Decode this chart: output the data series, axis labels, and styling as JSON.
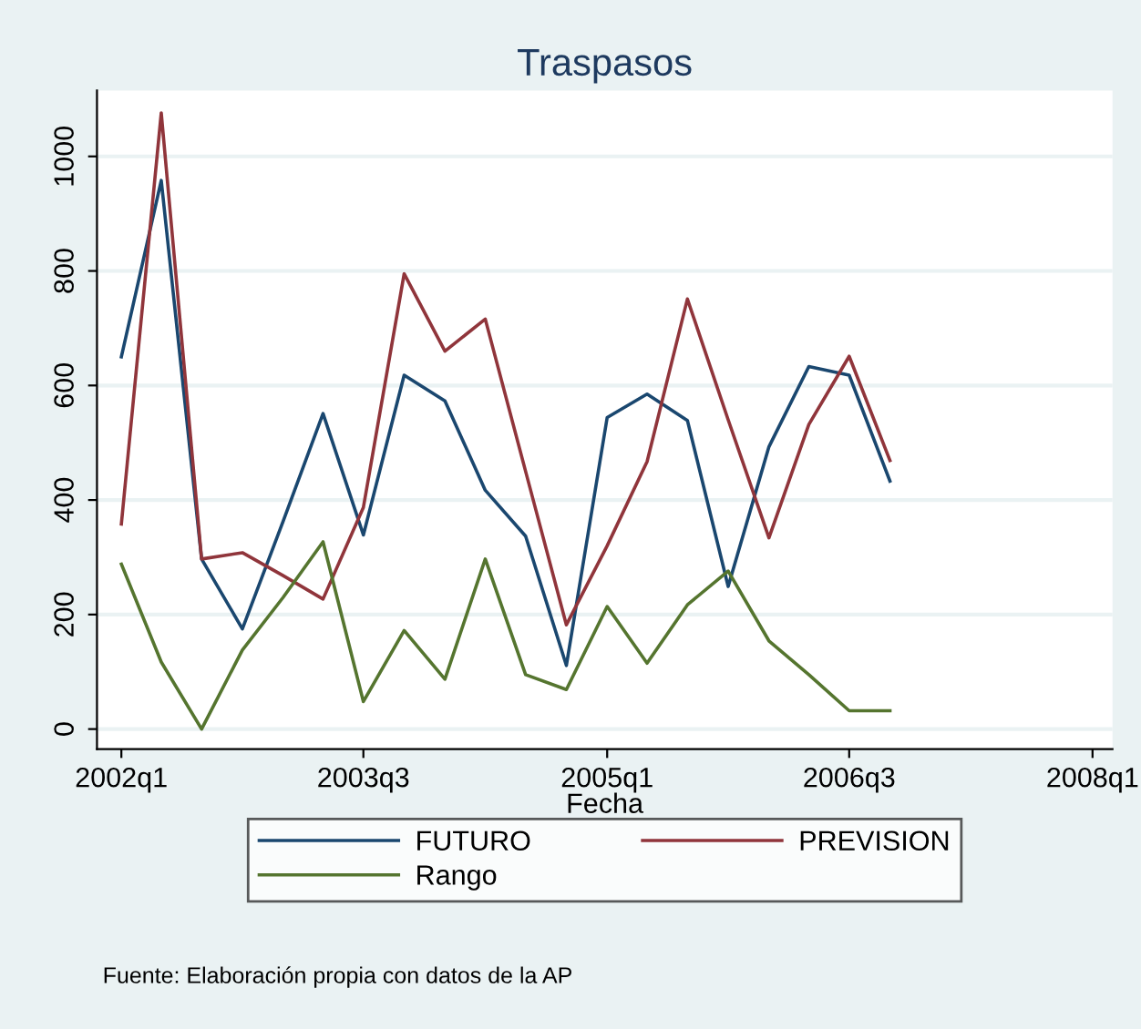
{
  "chart_data": {
    "type": "line",
    "title": "Traspasos",
    "xlabel": "Fecha",
    "annotations": [
      "Fuente: Elaboración propia con datos de la AP"
    ],
    "x": [
      "2002-01",
      "2002-04",
      "2002-07",
      "2002-10",
      "2003-01",
      "2003-04",
      "2003-07",
      "2003-10",
      "2004-01",
      "2004-04",
      "2004-07",
      "2004-10",
      "2005-01",
      "2005-04",
      "2005-07",
      "2005-10",
      "2006-01",
      "2006-04",
      "2006-07",
      "2006-10"
    ],
    "series": [
      {
        "name": "FUTURO",
        "color": "#1a476f",
        "values": [
          650,
          958,
          297,
          175,
          363,
          551,
          339,
          618,
          573,
          417,
          337,
          111,
          544,
          585,
          539,
          249,
          493,
          633,
          618,
          433
        ]
      },
      {
        "name": "PREVISION",
        "color": "#90353b",
        "values": [
          358,
          1076,
          297,
          308,
          268,
          227,
          387,
          795,
          660,
          716,
          450,
          182,
          320,
          467,
          751,
          540,
          334,
          532,
          651,
          469
        ]
      },
      {
        "name": "Rango",
        "color": "#55752f",
        "values": [
          288,
          117,
          0,
          138,
          230,
          327,
          48,
          172,
          87,
          297,
          95,
          69,
          214,
          115,
          217,
          276,
          154,
          95,
          32,
          32
        ]
      }
    ],
    "xlim": [
      "2001-11-07",
      "2008-02-15"
    ],
    "xticks": [
      {
        "value": "2002-01",
        "label": "2002q1"
      },
      {
        "value": "2003-07",
        "label": "2003q3"
      },
      {
        "value": "2005-01",
        "label": "2005q1"
      },
      {
        "value": "2006-07",
        "label": "2006q3"
      },
      {
        "value": "2008-01",
        "label": "2008q1"
      }
    ],
    "ylim": [
      -35,
      1115
    ],
    "yticks": [
      0,
      200,
      400,
      600,
      800,
      1000
    ],
    "grid": "y",
    "legend": "bottom"
  }
}
